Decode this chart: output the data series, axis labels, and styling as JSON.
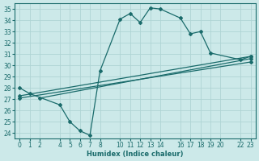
{
  "xlabel": "Humidex (Indice chaleur)",
  "xlim": [
    -0.5,
    23.5
  ],
  "ylim": [
    23.5,
    35.5
  ],
  "yticks": [
    24,
    25,
    26,
    27,
    28,
    29,
    30,
    31,
    32,
    33,
    34,
    35
  ],
  "xticks": [
    0,
    1,
    2,
    4,
    5,
    6,
    7,
    8,
    10,
    11,
    12,
    13,
    14,
    16,
    17,
    18,
    19,
    20,
    22,
    23
  ],
  "bg_color": "#cce9e9",
  "grid_color": "#afd4d4",
  "line_color": "#1a6b6b",
  "line1_x": [
    0,
    1,
    4,
    5,
    6,
    7,
    8,
    10,
    11,
    12,
    13,
    14,
    16,
    17,
    18,
    19,
    22,
    23
  ],
  "line1_y": [
    28.0,
    27.5,
    26.5,
    25.0,
    24.2,
    23.8,
    29.5,
    34.1,
    34.6,
    33.8,
    35.1,
    35.0,
    34.2,
    32.8,
    33.0,
    31.1,
    30.5,
    30.8
  ],
  "line2_x": [
    0,
    23
  ],
  "line2_y": [
    27.3,
    30.8
  ],
  "line3_x": [
    0,
    23
  ],
  "line3_y": [
    27.1,
    30.3
  ],
  "line4_x": [
    2,
    23
  ],
  "line4_y": [
    27.1,
    30.6
  ]
}
